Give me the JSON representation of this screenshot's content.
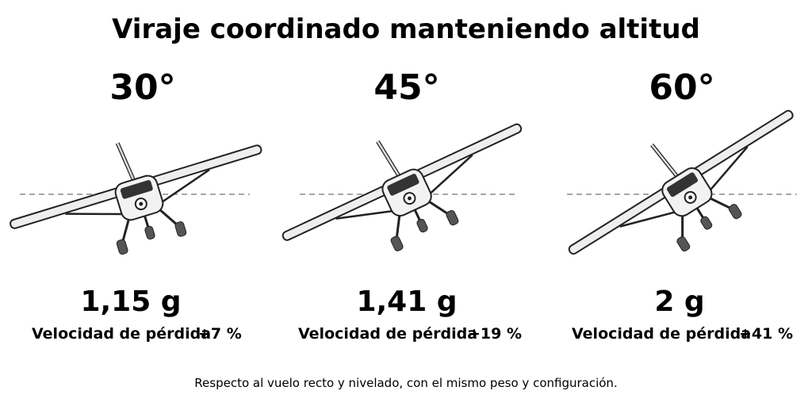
{
  "title": "Viraje coordinado manteniendo altitud",
  "panels": [
    {
      "angle": "30°",
      "load": "1,15 g",
      "stall_label": "Velocidad de pérdida",
      "stall_change": "+7 %"
    },
    {
      "angle": "45°",
      "load": "1,41 g",
      "stall_label": "Velocidad de pérdida",
      "stall_change": "+19 %"
    },
    {
      "angle": "60°",
      "load": "2 g",
      "stall_label": "Velocidad de pérdida",
      "stall_change": "+41 %"
    }
  ],
  "footnote": "Respecto al vuelo recto y nivelado, con el mismo peso y configuración."
}
